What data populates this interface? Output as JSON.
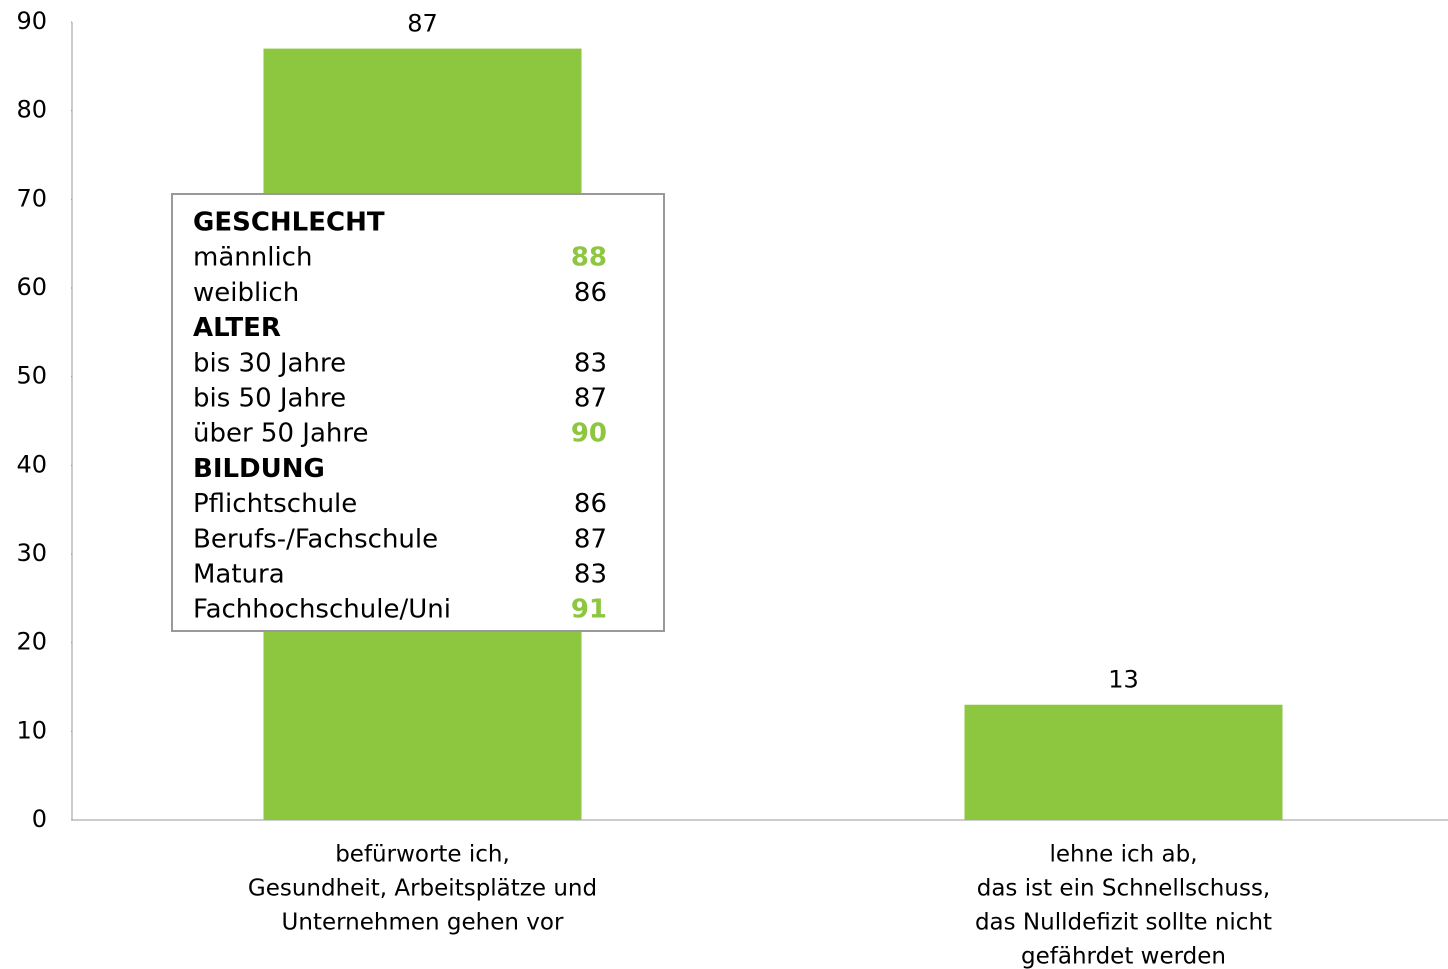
{
  "chart_data": {
    "type": "bar",
    "categories": [
      [
        "befürworte ich,",
        "Gesundheit, Arbeitsplätze und",
        "Unternehmen gehen vor"
      ],
      [
        "lehne ich ab,",
        "das ist ein Schnellschuss,",
        "das Nulldefizit sollte nicht",
        "gefährdet werden"
      ]
    ],
    "values": [
      87,
      13
    ],
    "color": "#8dc63f",
    "ylim": [
      0,
      90
    ],
    "yticks": [
      0,
      10,
      20,
      30,
      40,
      50,
      60,
      70,
      80,
      90
    ],
    "inset": {
      "highlight_color": "#8dc63f",
      "groups": [
        {
          "title": "GESCHLECHT",
          "rows": [
            {
              "label": "männlich",
              "value": 88,
              "highlight": true
            },
            {
              "label": "weiblich",
              "value": 86,
              "highlight": false
            }
          ]
        },
        {
          "title": "ALTER",
          "rows": [
            {
              "label": "bis 30 Jahre",
              "value": 83,
              "highlight": false
            },
            {
              "label": "bis 50 Jahre",
              "value": 87,
              "highlight": false
            },
            {
              "label": "über 50 Jahre",
              "value": 90,
              "highlight": true
            }
          ]
        },
        {
          "title": "BILDUNG",
          "rows": [
            {
              "label": "Pflichtschule",
              "value": 86,
              "highlight": false
            },
            {
              "label": "Berufs-/Fachschule",
              "value": 87,
              "highlight": false
            },
            {
              "label": "Matura",
              "value": 83,
              "highlight": false
            },
            {
              "label": "Fachhochschule/Uni",
              "value": 91,
              "highlight": true
            }
          ]
        }
      ]
    }
  }
}
